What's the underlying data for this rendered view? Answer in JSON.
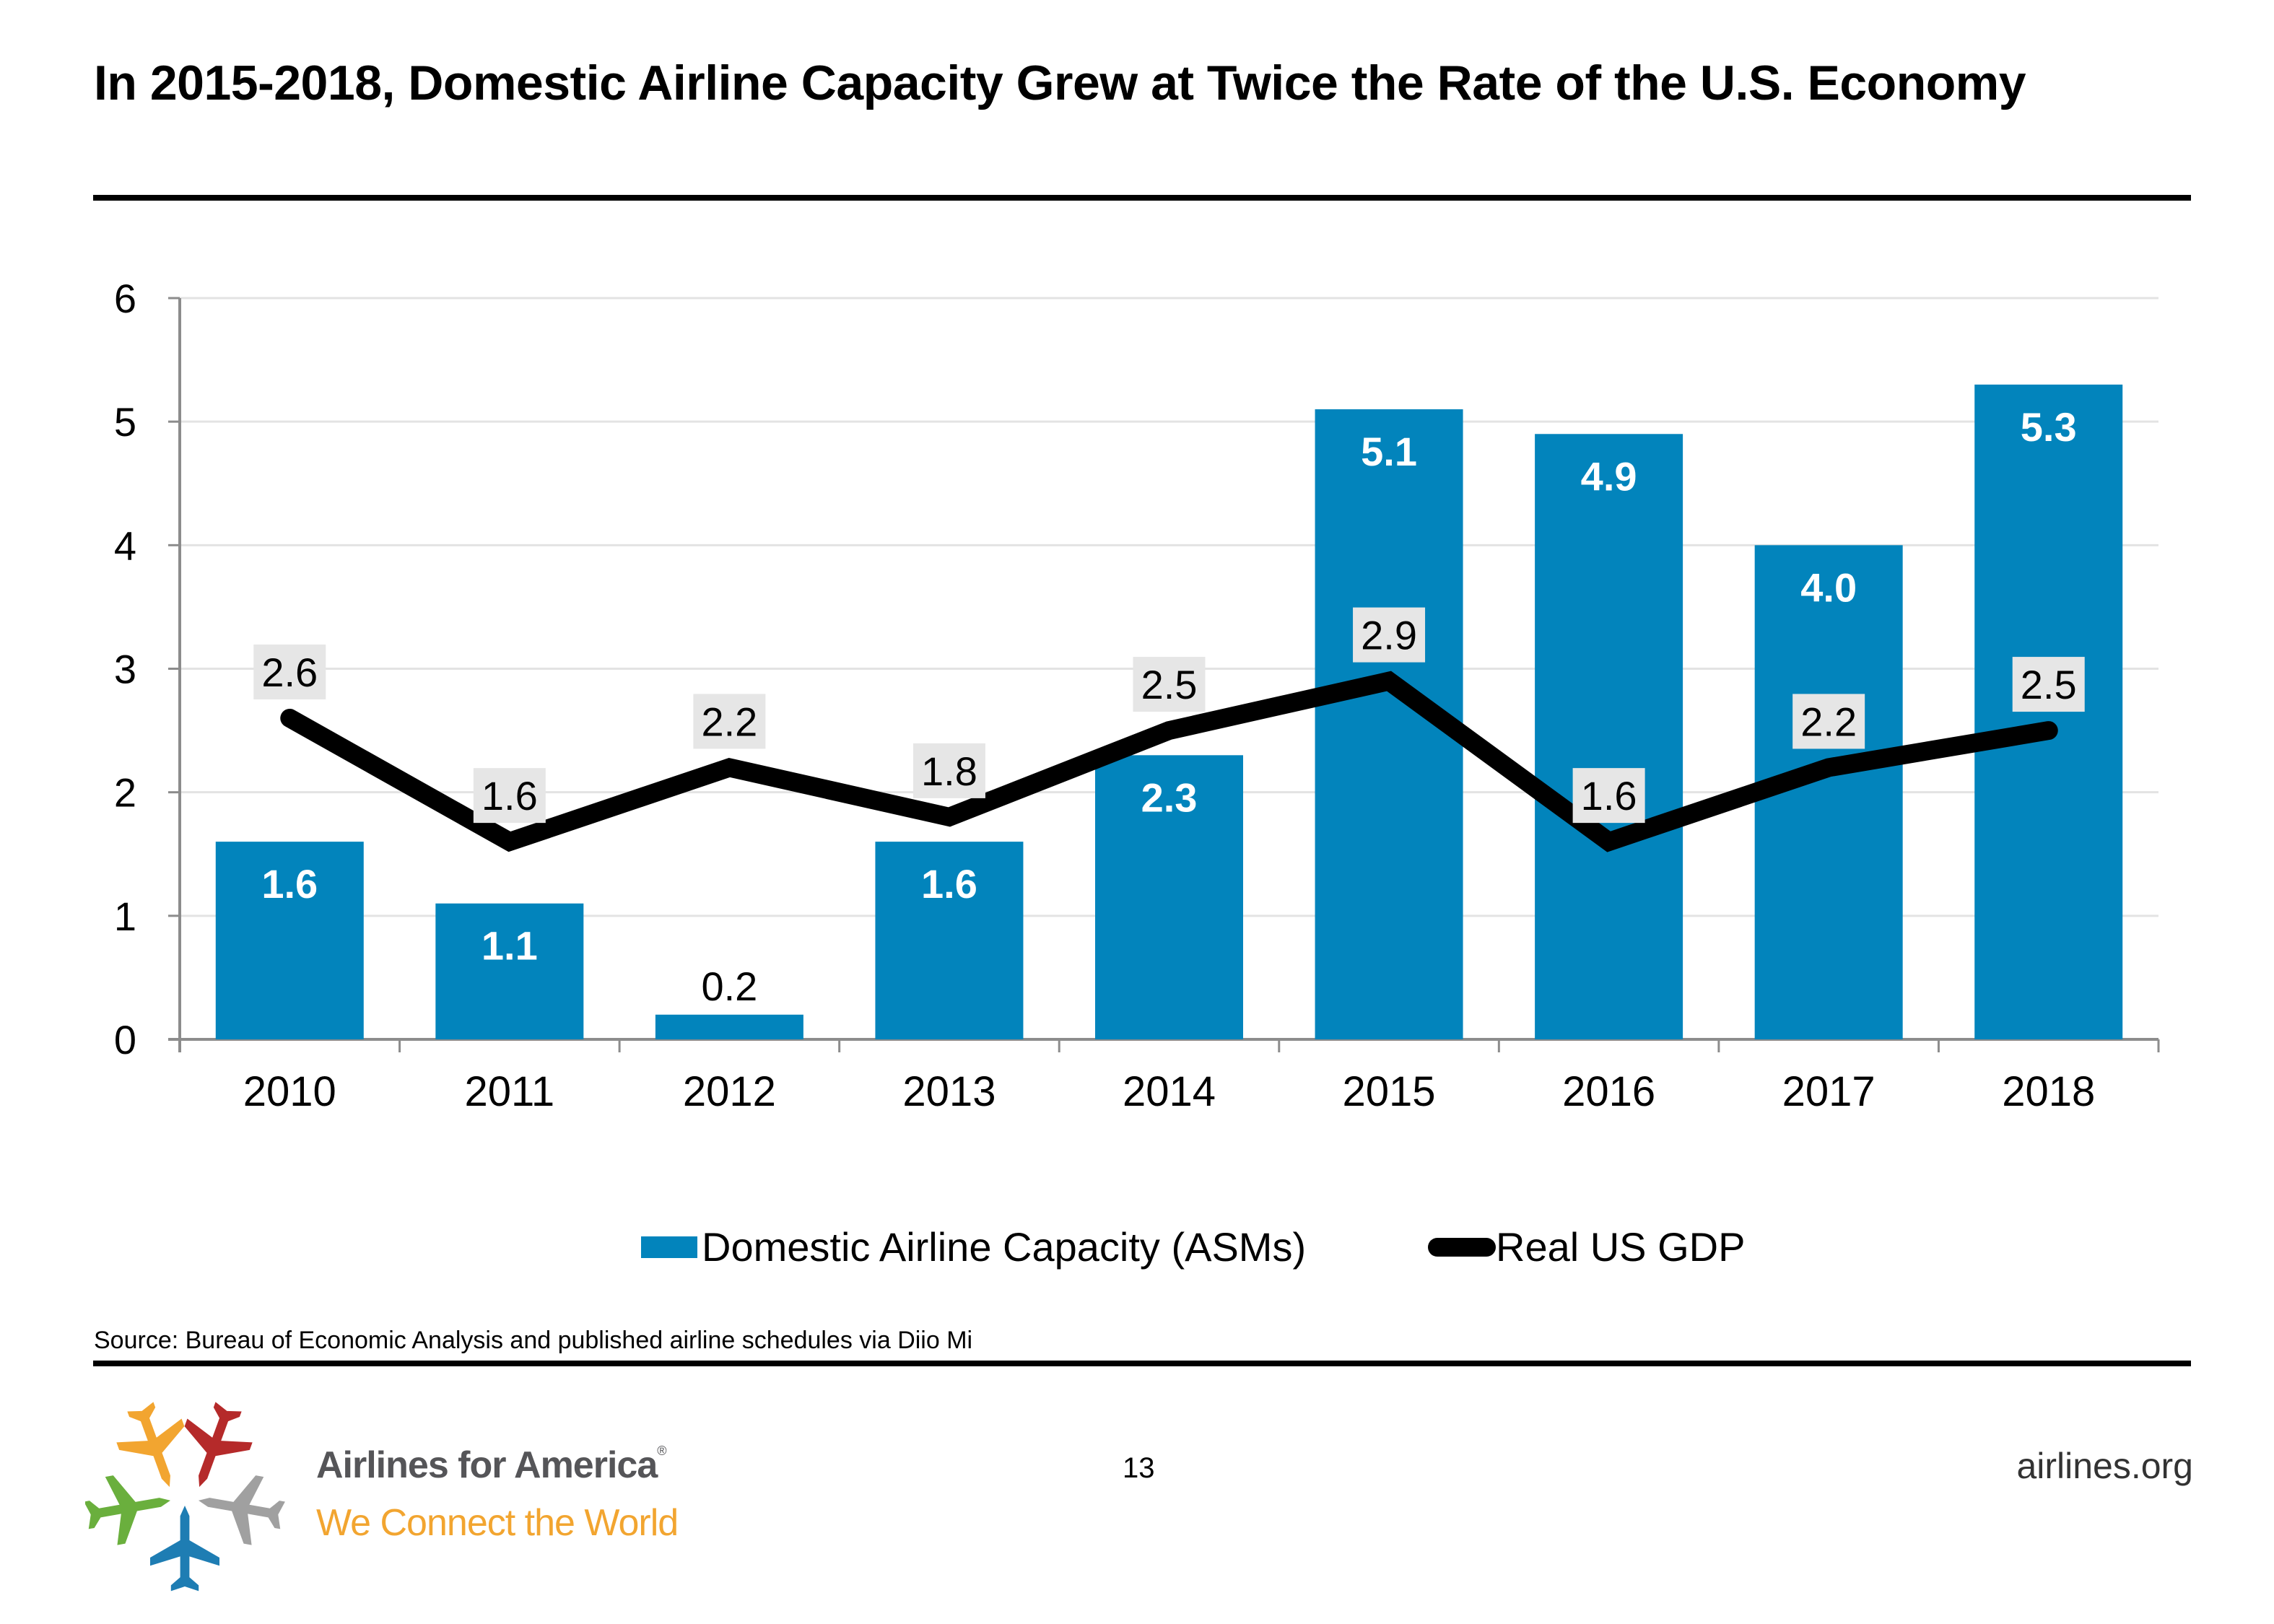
{
  "slide": {
    "title": "In 2015-2018, Domestic Airline Capacity Grew at Twice the Rate of the U.S. Economy",
    "source": "Source: Bureau of Economic Analysis and published airline schedules via Diio Mi",
    "page_number": "13",
    "site": "airlines.org"
  },
  "logo": {
    "name": "Airlines for America",
    "registered_mark": "®",
    "tagline": "We Connect the World",
    "plane_colors": [
      "#f2a530",
      "#b52a2a",
      "#6aaf3d",
      "#a0a0a0",
      "#1e7db3"
    ]
  },
  "colors": {
    "bar": "#0284bc",
    "line": "#000000",
    "label_box": "#e6e6e6",
    "grid": "#e3e3e3",
    "axis": "#8c8c8c"
  },
  "chart_data": {
    "type": "bar",
    "title": "In 2015-2018, Domestic Airline Capacity Grew at Twice the Rate of the U.S. Economy",
    "xlabel": "",
    "ylabel": "",
    "categories": [
      "2010",
      "2011",
      "2012",
      "2013",
      "2014",
      "2015",
      "2016",
      "2017",
      "2018"
    ],
    "ylim": [
      0,
      6
    ],
    "yticks": [
      "0",
      "1",
      "2",
      "3",
      "4",
      "5",
      "6"
    ],
    "grid": true,
    "legend_position": "bottom",
    "series": [
      {
        "name": "Domestic Airline Capacity (ASMs)",
        "type": "bar",
        "values": [
          1.6,
          1.1,
          0.2,
          1.6,
          2.3,
          5.1,
          4.9,
          4.0,
          5.3
        ],
        "labels": [
          "1.6",
          "1.1",
          "0.2",
          "1.6",
          "2.3",
          "5.1",
          "4.9",
          "4.0",
          "5.3"
        ]
      },
      {
        "name": "Real US GDP",
        "type": "line",
        "values": [
          2.6,
          1.6,
          2.2,
          1.8,
          2.5,
          2.9,
          1.6,
          2.2,
          2.5
        ],
        "labels": [
          "2.6",
          "1.6",
          "2.2",
          "1.8",
          "2.5",
          "2.9",
          "1.6",
          "2.2",
          "2.5"
        ]
      }
    ]
  }
}
